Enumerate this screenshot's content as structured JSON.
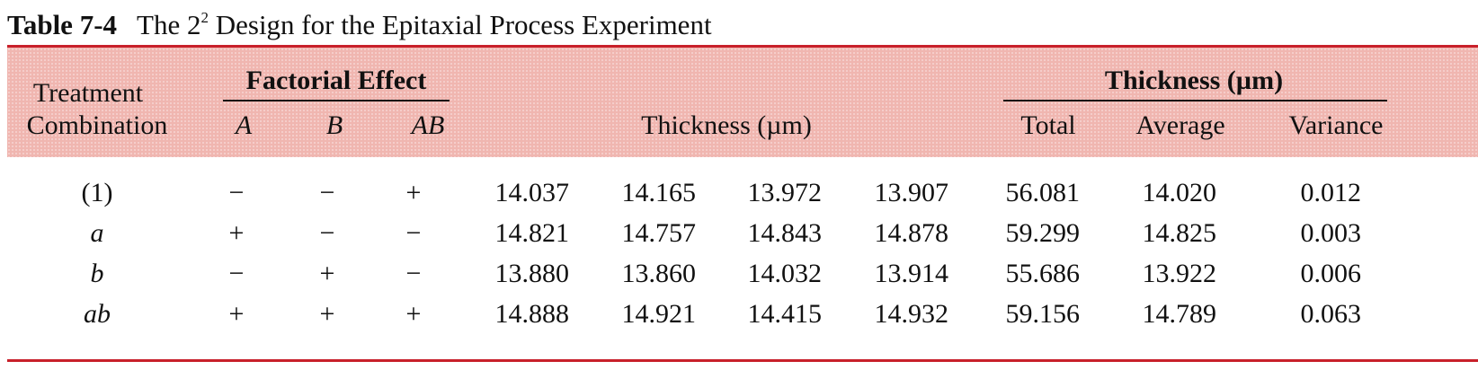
{
  "caption": {
    "label": "Table 7-4",
    "title_pre": "The 2",
    "title_sup": "2",
    "title_post": " Design for the Epitaxial Process Experiment"
  },
  "header": {
    "treatment_line1": "Treatment",
    "treatment_line2": "Combination",
    "factorial_effect": "Factorial Effect",
    "col_a": "A",
    "col_b": "B",
    "col_ab": "AB",
    "thickness": "Thickness (µm)",
    "thickness_group": "Thickness (µm)",
    "total": "Total",
    "average": "Average",
    "variance": "Variance"
  },
  "rows": [
    {
      "combo": "(1)",
      "a": "−",
      "b": "−",
      "ab": "+",
      "obs": [
        "14.037",
        "14.165",
        "13.972",
        "13.907"
      ],
      "total": "56.081",
      "average": "14.020",
      "variance": "0.012"
    },
    {
      "combo": "a",
      "a": "+",
      "b": "−",
      "ab": "−",
      "obs": [
        "14.821",
        "14.757",
        "14.843",
        "14.878"
      ],
      "total": "59.299",
      "average": "14.825",
      "variance": "0.003"
    },
    {
      "combo": "b",
      "a": "−",
      "b": "+",
      "ab": "−",
      "obs": [
        "13.880",
        "13.860",
        "14.032",
        "13.914"
      ],
      "total": "55.686",
      "average": "13.922",
      "variance": "0.006"
    },
    {
      "combo": "ab",
      "a": "+",
      "b": "+",
      "ab": "+",
      "obs": [
        "14.888",
        "14.921",
        "14.415",
        "14.932"
      ],
      "total": "59.156",
      "average": "14.789",
      "variance": "0.063"
    }
  ]
}
